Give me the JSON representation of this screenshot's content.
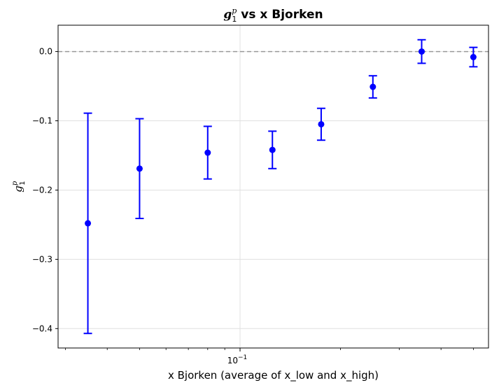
{
  "chart_data": {
    "type": "scatter",
    "title_symbol": "g",
    "title_sup": "p",
    "title_sub": "1",
    "title_rest": " vs x Bjorken",
    "xlabel": "x Bjorken (average of x_low and x_high)",
    "ylabel_symbol": "g",
    "ylabel_sup": "p",
    "ylabel_sub": "1",
    "x_scale": "log",
    "xlim": [
      0.0285,
      0.555
    ],
    "ylim": [
      -0.428,
      0.038
    ],
    "yticks": [
      0.0,
      -0.1,
      -0.2,
      -0.3,
      -0.4
    ],
    "ytick_labels": [
      "0.0",
      "−0.1",
      "−0.2",
      "−0.3",
      "−0.4"
    ],
    "xtick_base": "10",
    "xtick_exp": "−1",
    "xtick_value": 0.1,
    "grid": true,
    "reference_line_y": 0.0,
    "series": [
      {
        "name": "g1p",
        "color": "#0000ff",
        "x": [
          0.035,
          0.05,
          0.08,
          0.125,
          0.175,
          0.25,
          0.35,
          0.5
        ],
        "y": [
          -0.248,
          -0.169,
          -0.146,
          -0.142,
          -0.105,
          -0.051,
          0.0,
          -0.008
        ],
        "yerr": [
          0.159,
          0.072,
          0.038,
          0.027,
          0.023,
          0.016,
          0.017,
          0.014
        ]
      }
    ]
  }
}
